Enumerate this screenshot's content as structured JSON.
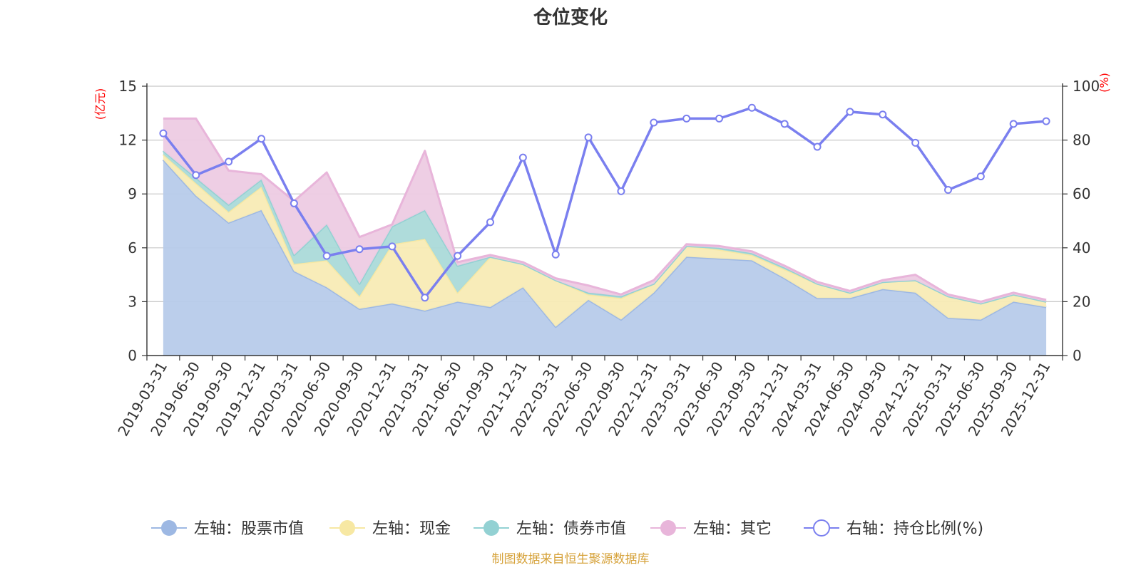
{
  "chart_data": {
    "type": "area",
    "title": "仓位变化",
    "left_unit": "(亿元)",
    "right_unit": "(%)",
    "left_ylim": [
      0,
      15
    ],
    "left_ticks": [
      "0",
      "3",
      "6",
      "9",
      "12",
      "15"
    ],
    "right_ylim": [
      0,
      100
    ],
    "right_ticks": [
      "0",
      "20",
      "40",
      "60",
      "80",
      "100"
    ],
    "categories": [
      "2019-03-31",
      "2019-06-30",
      "2019-09-30",
      "2019-12-31",
      "2020-03-31",
      "2020-06-30",
      "2020-09-30",
      "2020-12-31",
      "2021-03-31",
      "2021-06-30",
      "2021-09-30",
      "2021-12-31",
      "2022-03-31",
      "2022-06-30",
      "2022-09-30",
      "2022-12-31",
      "2023-03-31",
      "2023-06-30",
      "2023-09-30",
      "2023-12-31",
      "2024-03-31",
      "2024-06-30",
      "2024-09-30",
      "2024-12-31",
      "2025-03-31",
      "2025-06-30",
      "2025-09-30",
      "2025-12-31"
    ],
    "series": [
      {
        "name": "左轴：股票市值",
        "axis": "left",
        "color": "#9db8e3",
        "fill": "#b7cbea",
        "values": [
          10.9,
          8.9,
          7.4,
          8.1,
          4.7,
          3.8,
          2.6,
          2.9,
          2.5,
          3.0,
          2.7,
          3.8,
          1.6,
          3.1,
          2.0,
          3.5,
          5.5,
          5.4,
          5.3,
          4.3,
          3.2,
          3.2,
          3.7,
          3.5,
          2.1,
          2.0,
          3.0,
          2.7
        ]
      },
      {
        "name": "左轴：现金",
        "axis": "left",
        "color": "#f7e8a3",
        "fill": "#f8ebb5",
        "values": [
          0.3,
          0.7,
          0.6,
          1.3,
          0.4,
          1.5,
          0.7,
          3.3,
          4.0,
          0.5,
          2.8,
          1.3,
          2.6,
          0.3,
          1.2,
          0.5,
          0.6,
          0.5,
          0.3,
          0.5,
          0.8,
          0.3,
          0.4,
          0.7,
          1.2,
          0.9,
          0.4,
          0.3
        ]
      },
      {
        "name": "左轴：债券市值",
        "axis": "left",
        "color": "#93d1d3",
        "fill": "#abdad9",
        "values": [
          0.2,
          0.3,
          0.4,
          0.4,
          0.5,
          2.0,
          0.7,
          1.0,
          1.6,
          1.5,
          0,
          0,
          0,
          0.1,
          0.1,
          0,
          0,
          0.1,
          0.1,
          0.1,
          0,
          0,
          0,
          0,
          0,
          0,
          0,
          0
        ]
      },
      {
        "name": "左轴：其它",
        "axis": "left",
        "color": "#e8b5da",
        "fill": "#edcbe3",
        "values": [
          1.8,
          3.3,
          1.9,
          0.3,
          3.0,
          2.9,
          2.6,
          0.1,
          3.3,
          0.2,
          0.1,
          0.1,
          0.1,
          0.4,
          0.1,
          0.2,
          0.1,
          0.1,
          0.1,
          0.1,
          0.1,
          0.1,
          0.1,
          0.3,
          0.1,
          0.1,
          0.1,
          0.1
        ]
      },
      {
        "name": "右轴：持仓比例(%)",
        "axis": "right",
        "color": "#7a7fef",
        "values": [
          82.5,
          67,
          72,
          80.5,
          56.5,
          37,
          39.5,
          40.5,
          21.5,
          37,
          49.5,
          73.5,
          37.5,
          81,
          61,
          86.5,
          88,
          88,
          92,
          86,
          77.5,
          90.5,
          89.5,
          79,
          61.5,
          66.5,
          86,
          87
        ]
      }
    ],
    "legend_position": "bottom",
    "footer": "制图数据来自恒生聚源数据库"
  }
}
